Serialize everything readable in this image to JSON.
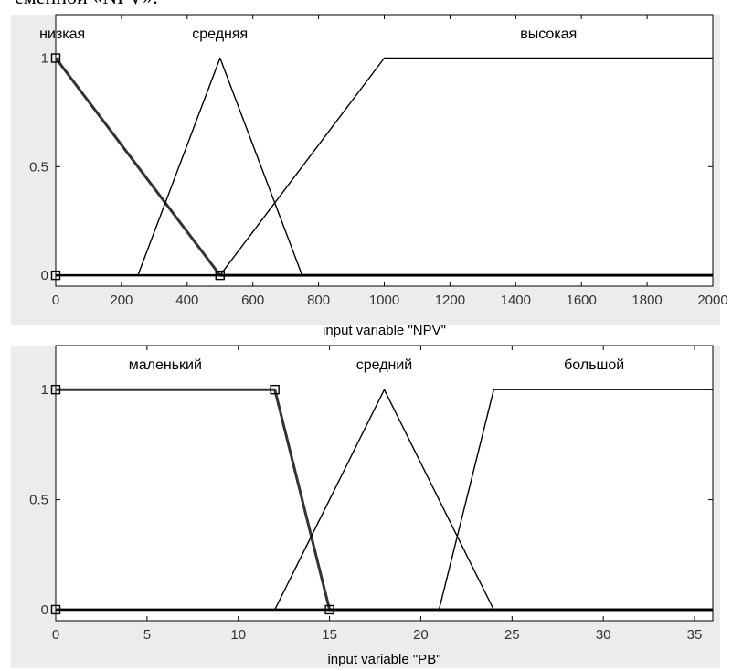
{
  "page_fragment": "еменной «NPV».",
  "chart_data": [
    {
      "type": "line",
      "xlabel": "input variable \"NPV\"",
      "xlim": [
        0,
        2000
      ],
      "ylim": [
        -0.05,
        1.2
      ],
      "xticks": [
        "0",
        "200",
        "400",
        "600",
        "800",
        "1000",
        "1200",
        "1400",
        "1600",
        "1800",
        "2000"
      ],
      "xtick_values": [
        0,
        200,
        400,
        600,
        800,
        1000,
        1200,
        1400,
        1600,
        1800,
        2000
      ],
      "yticks": [
        "0",
        "0.5",
        "1"
      ],
      "ytick_values": [
        0,
        0.5,
        1
      ],
      "series": [
        {
          "name": "низкая",
          "points": [
            [
              0,
              1
            ],
            [
              500,
              0
            ],
            [
              2000,
              0
            ]
          ],
          "bold": true,
          "label_x": 20
        },
        {
          "name": "средняя",
          "points": [
            [
              0,
              0
            ],
            [
              250,
              0
            ],
            [
              500,
              1
            ],
            [
              750,
              0
            ],
            [
              2000,
              0
            ]
          ],
          "bold": false,
          "label_x": 500
        },
        {
          "name": "высокая",
          "points": [
            [
              0,
              0
            ],
            [
              500,
              0
            ],
            [
              1000,
              1
            ],
            [
              2000,
              1
            ]
          ],
          "bold": false,
          "label_x": 1500
        }
      ],
      "markers": [
        [
          0,
          1
        ],
        [
          0,
          0
        ],
        [
          500,
          0
        ]
      ]
    },
    {
      "type": "line",
      "xlabel": "input variable \"PB\"",
      "xlim": [
        0,
        36
      ],
      "ylim": [
        -0.05,
        1.2
      ],
      "xticks": [
        "0",
        "5",
        "10",
        "15",
        "20",
        "25",
        "30",
        "35"
      ],
      "xtick_values": [
        0,
        5,
        10,
        15,
        20,
        25,
        30,
        35
      ],
      "yticks": [
        "0",
        "0.5",
        "1"
      ],
      "ytick_values": [
        0,
        0.5,
        1
      ],
      "series": [
        {
          "name": "маленький",
          "points": [
            [
              0,
              1
            ],
            [
              12,
              1
            ],
            [
              15,
              0
            ],
            [
              36,
              0
            ]
          ],
          "bold": true,
          "label_x": 6
        },
        {
          "name": "средний",
          "points": [
            [
              0,
              0
            ],
            [
              12,
              0
            ],
            [
              18,
              1
            ],
            [
              24,
              0
            ],
            [
              36,
              0
            ]
          ],
          "bold": false,
          "label_x": 18
        },
        {
          "name": "большой",
          "points": [
            [
              0,
              0
            ],
            [
              21,
              0
            ],
            [
              24,
              1
            ],
            [
              36,
              1
            ]
          ],
          "bold": false,
          "label_x": 29.5
        }
      ],
      "markers": [
        [
          0,
          1
        ],
        [
          0,
          0
        ],
        [
          12,
          1
        ],
        [
          15,
          0
        ]
      ]
    }
  ]
}
